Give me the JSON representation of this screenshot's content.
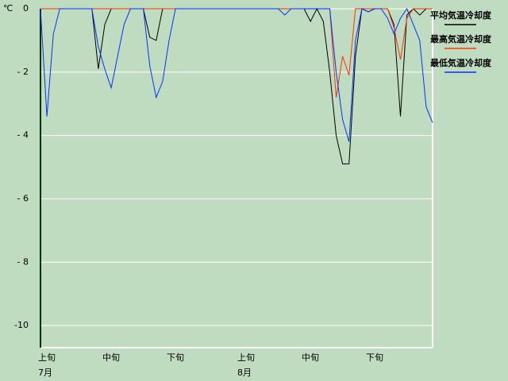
{
  "chart_data": {
    "type": "line",
    "y_unit": "℃",
    "categories": [
      "上旬",
      null,
      null,
      null,
      null,
      null,
      null,
      null,
      null,
      null,
      "中旬",
      null,
      null,
      null,
      null,
      null,
      null,
      null,
      null,
      null,
      "下旬",
      null,
      null,
      null,
      null,
      null,
      null,
      null,
      null,
      null,
      null,
      "上旬",
      null,
      null,
      null,
      null,
      null,
      null,
      null,
      null,
      null,
      "中旬",
      null,
      null,
      null,
      null,
      null,
      null,
      null,
      null,
      null,
      "下旬",
      null,
      null,
      null,
      null,
      null,
      null,
      null,
      null,
      null,
      null
    ],
    "months": [
      "7月",
      "8月"
    ],
    "series": [
      {
        "name": "平均気温冷却度",
        "color": "#000000",
        "values": [
          0,
          0,
          0,
          0,
          0,
          0,
          0,
          0,
          0,
          -1.9,
          -0.5,
          0,
          0,
          0,
          0,
          0,
          0,
          -0.9,
          -1.0,
          0,
          0,
          0,
          0,
          0,
          0,
          0,
          0,
          0,
          0,
          0,
          0,
          0,
          0,
          0,
          0,
          0,
          0,
          0,
          0,
          0,
          0,
          0,
          -0.4,
          0,
          -0.4,
          -2.0,
          -4.0,
          -4.9,
          -4.9,
          -1.5,
          0,
          -0.1,
          0,
          0,
          0,
          -0.5,
          -3.4,
          -0.2,
          0,
          -0.2,
          0,
          0
        ]
      },
      {
        "name": "最高気温冷却度",
        "color": "#ff3300",
        "values": [
          0,
          0,
          0,
          0,
          0,
          0,
          0,
          0,
          0,
          0,
          0,
          0,
          0,
          0,
          0,
          0,
          0,
          0,
          0,
          0,
          0,
          0,
          0,
          0,
          0,
          0,
          0,
          0,
          0,
          0,
          0,
          0,
          0,
          0,
          0,
          0,
          0,
          0,
          0,
          0,
          0,
          0,
          0,
          0,
          0,
          0,
          -2.8,
          -1.5,
          -2.1,
          0,
          0,
          0,
          0,
          0,
          0,
          -0.6,
          -1.6,
          -0.3,
          0,
          0,
          0,
          0
        ]
      },
      {
        "name": "最低気温冷却度",
        "color": "#0033ff",
        "values": [
          0,
          -3.4,
          -0.8,
          0,
          0,
          0,
          0,
          0,
          0,
          -1.2,
          -1.9,
          -2.5,
          -1.5,
          -0.5,
          0,
          0,
          0,
          -1.8,
          -2.8,
          -2.3,
          -1.0,
          0,
          0,
          0,
          0,
          0,
          0,
          0,
          0,
          0,
          0,
          0,
          0,
          0,
          0,
          0,
          0,
          0,
          -0.2,
          0,
          0,
          0,
          0,
          0,
          0,
          0,
          -2.0,
          -3.5,
          -4.2,
          -1.0,
          0,
          -0.1,
          0,
          0,
          -0.3,
          -0.8,
          -0.3,
          0,
          -0.5,
          -1.0,
          -3.1,
          -3.6
        ]
      }
    ],
    "ylim": [
      -10.7,
      0
    ],
    "yticks": [
      0,
      {
        "value": -2,
        "label": "- 2"
      },
      {
        "value": -4,
        "label": "- 4"
      },
      {
        "value": -6,
        "label": "- 6"
      },
      {
        "value": -8,
        "label": "- 8"
      },
      {
        "value": -10,
        "label": "-10"
      }
    ],
    "grid": true,
    "legend": "right"
  }
}
